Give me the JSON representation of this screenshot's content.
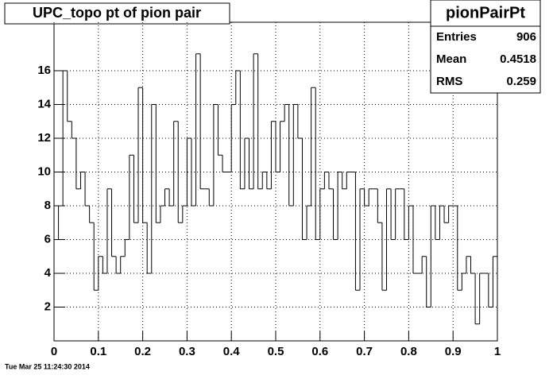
{
  "chart_data": {
    "type": "histogram",
    "title": "UPC_topo pt of pion pair",
    "bins": [
      0,
      0.01,
      0.02,
      0.03,
      0.04,
      0.05,
      0.06,
      0.07,
      0.08,
      0.09,
      0.1,
      0.11,
      0.12,
      0.13,
      0.14,
      0.15,
      0.16,
      0.17,
      0.18,
      0.19,
      0.2,
      0.21,
      0.22,
      0.23,
      0.24,
      0.25,
      0.26,
      0.27,
      0.28,
      0.29,
      0.3,
      0.31,
      0.32,
      0.33,
      0.34,
      0.35,
      0.36,
      0.37,
      0.38,
      0.39,
      0.4,
      0.41,
      0.42,
      0.43,
      0.44,
      0.45,
      0.46,
      0.47,
      0.48,
      0.49,
      0.5,
      0.51,
      0.52,
      0.53,
      0.54,
      0.55,
      0.56,
      0.57,
      0.58,
      0.59,
      0.6,
      0.61,
      0.62,
      0.63,
      0.64,
      0.65,
      0.66,
      0.67,
      0.68,
      0.69,
      0.7,
      0.71,
      0.72,
      0.73,
      0.74,
      0.75,
      0.76,
      0.77,
      0.78,
      0.79,
      0.8,
      0.81,
      0.82,
      0.83,
      0.84,
      0.85,
      0.86,
      0.87,
      0.88,
      0.89,
      0.9,
      0.91,
      0.92,
      0.93,
      0.94,
      0.95,
      0.96,
      0.97,
      0.98,
      0.99,
      1
    ],
    "values": [
      6,
      8,
      16,
      13,
      12,
      9,
      10,
      8,
      7,
      3,
      5,
      4,
      9,
      5,
      4,
      5,
      6,
      11,
      7,
      15,
      7,
      4,
      14,
      7,
      8,
      9,
      8,
      13,
      7,
      8,
      12,
      8,
      17,
      9,
      9,
      8,
      14,
      11,
      10,
      10,
      14,
      16,
      9,
      12,
      9,
      17,
      9,
      10,
      9,
      13,
      10,
      13,
      14,
      8,
      14,
      12,
      6,
      8,
      15,
      6,
      9,
      10,
      9,
      6,
      10,
      9,
      10,
      10,
      3,
      9,
      8,
      9,
      9,
      7,
      3,
      9,
      6,
      9,
      9,
      6,
      8,
      4,
      4,
      5,
      2,
      8,
      6,
      8,
      7,
      8,
      8,
      3,
      4,
      5,
      4,
      1,
      4,
      4,
      2,
      5
    ],
    "color": "#000000",
    "xlim": [
      0,
      1
    ],
    "xticks": [
      0,
      0.1,
      0.2,
      0.3,
      0.4,
      0.5,
      0.6,
      0.7,
      0.8,
      0.9,
      1
    ],
    "ylim": [
      0,
      18.87
    ],
    "yticks": [
      2,
      4,
      6,
      8,
      10,
      12,
      14,
      16
    ],
    "grid": true,
    "stats": {
      "name": "pionPairPt",
      "rows": [
        [
          "Entries",
          906
        ],
        [
          "Mean",
          0.4518
        ],
        [
          "RMS",
          0.259
        ]
      ]
    },
    "timestamp": "Tue Mar 25 11:24:30 2014"
  }
}
